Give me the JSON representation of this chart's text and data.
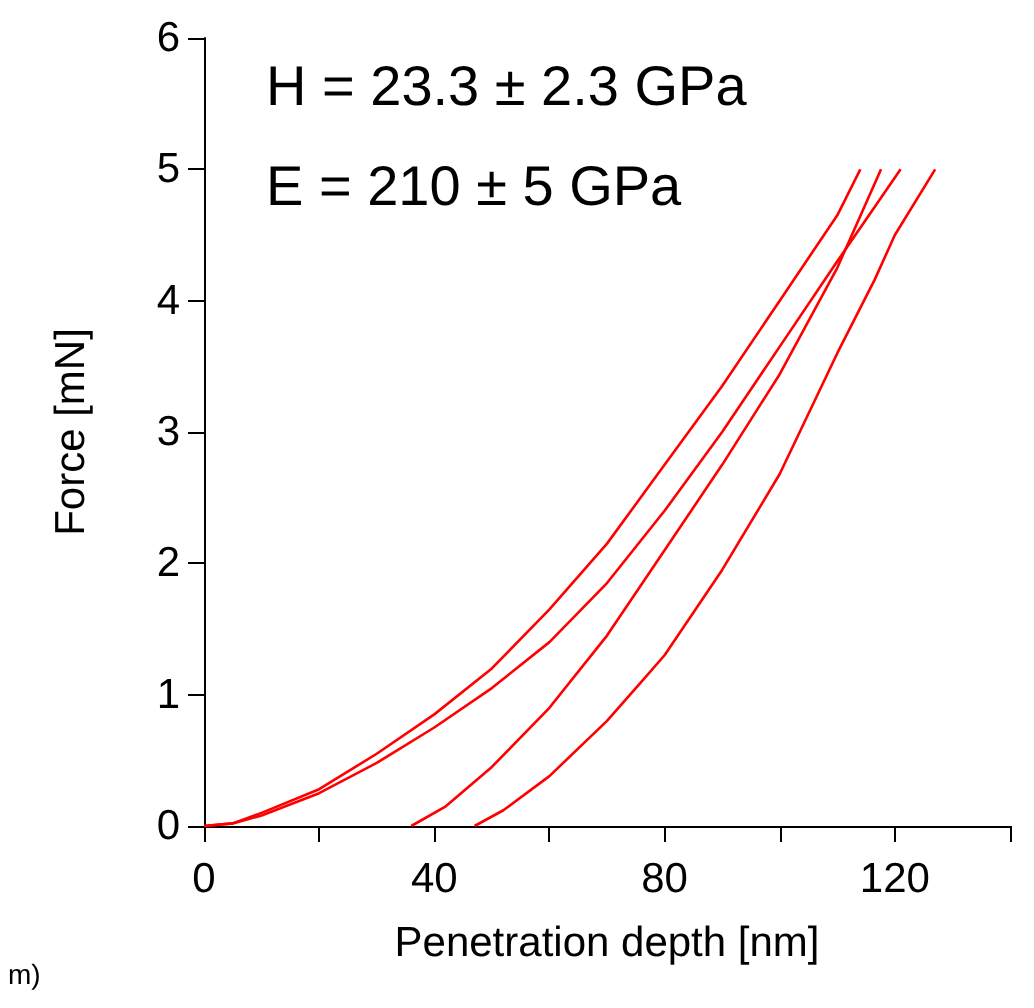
{
  "chart_data": {
    "type": "line",
    "xlabel": "Penetration depth [nm]",
    "ylabel": "Force [mN]",
    "annotations": [
      "H = 23.3 ± 2.3 GPa",
      "E = 210 ± 5 GPa",
      "m)"
    ],
    "xlim": [
      0,
      140
    ],
    "xticks": [
      0,
      {
        "value": 20,
        "label": null
      },
      40,
      {
        "value": 60,
        "label": null
      },
      80,
      {
        "value": 100,
        "label": null
      },
      120,
      {
        "value": 140,
        "label": null
      }
    ],
    "ylim": [
      0,
      6
    ],
    "yticks": [
      0,
      1,
      2,
      3,
      4,
      5,
      6
    ],
    "grid": false,
    "series": [
      {
        "color": "#ff0000",
        "x": [
          0,
          5,
          10,
          20,
          30,
          40,
          50,
          60,
          70,
          80,
          90,
          100,
          110,
          114
        ],
        "values": [
          0,
          0.02,
          0.1,
          0.28,
          0.55,
          0.85,
          1.2,
          1.65,
          2.15,
          2.75,
          3.35,
          4.0,
          4.65,
          5.0
        ]
      },
      {
        "color": "#ff0000",
        "x": [
          0,
          5,
          10,
          20,
          30,
          40,
          50,
          60,
          70,
          80,
          90,
          100,
          110,
          121
        ],
        "values": [
          0,
          0.02,
          0.08,
          0.25,
          0.48,
          0.75,
          1.05,
          1.4,
          1.85,
          2.4,
          3.0,
          3.65,
          4.3,
          5.0
        ]
      },
      {
        "color": "#ff0000",
        "x": [
          117.6,
          110,
          100,
          90,
          80,
          70,
          60,
          50,
          42,
          36
        ],
        "values": [
          5,
          4.25,
          3.44,
          2.75,
          2.1,
          1.45,
          0.9,
          0.45,
          0.15,
          0
        ]
      },
      {
        "color": "#ff0000",
        "x": [
          127,
          120,
          116.5,
          110,
          100,
          90,
          80,
          76,
          70,
          60,
          52,
          47
        ],
        "values": [
          5,
          4.5,
          4.16,
          3.6,
          2.68,
          1.95,
          1.3,
          1.1,
          0.8,
          0.38,
          0.12,
          0
        ]
      }
    ]
  }
}
